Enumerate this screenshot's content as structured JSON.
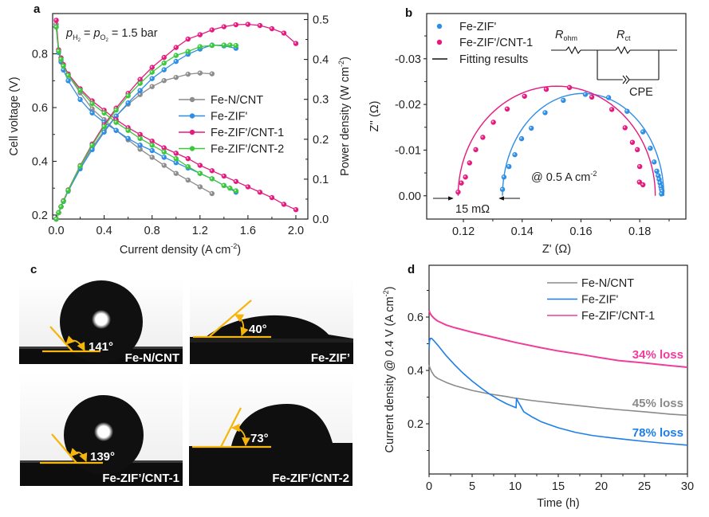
{
  "figure": {
    "panels": [
      "a",
      "b",
      "c",
      "d"
    ]
  },
  "chart_data": [
    {
      "id": "a",
      "type": "line",
      "panel_label": "a",
      "title": "",
      "annotation": {
        "p": "p",
        "h2_sub": "H",
        "h2_subsub": "2",
        "eq1": " = ",
        "o2_sub": "O",
        "o2_subsub": "2",
        "rest": " = 1.5 bar"
      },
      "xlabel": "Current density (A cm",
      "xlabel_sup": "-2",
      "xlabel_end": ")",
      "ylabel": "Cell voltage (V)",
      "y2label": "Power density (W cm",
      "y2label_sup": "-2",
      "y2label_end": ")",
      "xlim": [
        -0.03,
        2.1
      ],
      "ylim": [
        0.185,
        0.95
      ],
      "y2lim": [
        0.0,
        0.515
      ],
      "xticks": [
        "0.0",
        "0.4",
        "0.8",
        "1.2",
        "1.6",
        "2.0"
      ],
      "xtick_values": [
        0.0,
        0.4,
        0.8,
        1.2,
        1.6,
        2.0
      ],
      "yticks": [
        "0.2",
        "0.4",
        "0.6",
        "0.8"
      ],
      "ytick_values": [
        0.2,
        0.4,
        0.6,
        0.8
      ],
      "y2ticks": [
        "0.0",
        "0.1",
        "0.2",
        "0.3",
        "0.4",
        "0.5"
      ],
      "y2tick_values": [
        0.0,
        0.1,
        0.2,
        0.3,
        0.4,
        0.5
      ],
      "legend_position": "center-right",
      "series": [
        {
          "name": "Fe-N/CNT",
          "color": "#8c8c8c",
          "x": [
            0.0,
            0.02,
            0.04,
            0.06,
            0.1,
            0.2,
            0.3,
            0.4,
            0.5,
            0.6,
            0.7,
            0.8,
            0.9,
            1.0,
            1.1,
            1.2,
            1.3
          ],
          "voltage": [
            0.91,
            0.81,
            0.775,
            0.755,
            0.72,
            0.655,
            0.595,
            0.555,
            0.515,
            0.48,
            0.445,
            0.415,
            0.385,
            0.355,
            0.33,
            0.305,
            0.28
          ],
          "power": [
            0.0,
            0.016,
            0.031,
            0.045,
            0.072,
            0.131,
            0.179,
            0.222,
            0.258,
            0.288,
            0.312,
            0.332,
            0.347,
            0.355,
            0.363,
            0.366,
            0.364
          ]
        },
        {
          "name": "Fe-ZIF'",
          "color": "#2e8ee6",
          "x": [
            0.0,
            0.02,
            0.04,
            0.06,
            0.1,
            0.2,
            0.3,
            0.4,
            0.5,
            0.6,
            0.7,
            0.8,
            0.9,
            1.0,
            1.1,
            1.2,
            1.3,
            1.4,
            1.5
          ],
          "voltage": [
            0.9,
            0.805,
            0.77,
            0.74,
            0.7,
            0.63,
            0.58,
            0.545,
            0.515,
            0.485,
            0.46,
            0.44,
            0.415,
            0.395,
            0.375,
            0.355,
            0.335,
            0.31,
            0.285
          ],
          "power": [
            0.0,
            0.016,
            0.031,
            0.044,
            0.07,
            0.126,
            0.174,
            0.218,
            0.258,
            0.291,
            0.322,
            0.352,
            0.374,
            0.395,
            0.413,
            0.426,
            0.436,
            0.434,
            0.428
          ]
        },
        {
          "name": "Fe-ZIF'/CNT-1",
          "color": "#e6197f",
          "x": [
            0.0,
            0.02,
            0.04,
            0.06,
            0.1,
            0.2,
            0.3,
            0.4,
            0.5,
            0.6,
            0.7,
            0.8,
            0.9,
            1.0,
            1.1,
            1.2,
            1.3,
            1.4,
            1.5,
            1.6,
            1.7,
            1.8,
            1.9,
            2.0
          ],
          "voltage": [
            0.925,
            0.815,
            0.785,
            0.76,
            0.725,
            0.67,
            0.625,
            0.59,
            0.555,
            0.525,
            0.5,
            0.475,
            0.45,
            0.43,
            0.41,
            0.385,
            0.365,
            0.345,
            0.325,
            0.305,
            0.285,
            0.265,
            0.24,
            0.22
          ],
          "power": [
            0.0,
            0.016,
            0.031,
            0.046,
            0.073,
            0.134,
            0.188,
            0.236,
            0.278,
            0.315,
            0.35,
            0.38,
            0.405,
            0.43,
            0.451,
            0.462,
            0.474,
            0.482,
            0.487,
            0.488,
            0.485,
            0.477,
            0.466,
            0.44
          ]
        },
        {
          "name": "Fe-ZIF'/CNT-2",
          "color": "#3cc83c",
          "x": [
            0.0,
            0.02,
            0.04,
            0.06,
            0.1,
            0.2,
            0.3,
            0.4,
            0.5,
            0.6,
            0.7,
            0.8,
            0.9,
            1.0,
            1.1,
            1.2,
            1.3,
            1.4,
            1.45,
            1.5
          ],
          "voltage": [
            0.9,
            0.81,
            0.78,
            0.755,
            0.72,
            0.665,
            0.615,
            0.58,
            0.545,
            0.515,
            0.485,
            0.46,
            0.435,
            0.41,
            0.38,
            0.355,
            0.335,
            0.31,
            0.3,
            0.29
          ],
          "power": [
            0.0,
            0.016,
            0.031,
            0.045,
            0.072,
            0.133,
            0.185,
            0.232,
            0.273,
            0.309,
            0.34,
            0.368,
            0.391,
            0.41,
            0.42,
            0.432,
            0.435,
            0.436,
            0.436,
            0.435
          ]
        }
      ]
    },
    {
      "id": "b",
      "type": "scatter",
      "panel_label": "b",
      "xlabel": "Z' (Ω)",
      "ylabel": "Z'' (Ω)",
      "xlim": [
        0.1075,
        0.1957
      ],
      "ylim": [
        0.0051,
        -0.0399
      ],
      "xticks": [
        "0.12",
        "0.14",
        "0.16",
        "0.18"
      ],
      "xtick_values": [
        0.12,
        0.14,
        0.16,
        0.18
      ],
      "yticks": [
        "0.00",
        "-0.01",
        "-0.02",
        "-0.03"
      ],
      "ytick_values": [
        0.0,
        -0.01,
        -0.02,
        -0.03
      ],
      "legend_position": "top-left",
      "legend": [
        {
          "name": "Fe-ZIF'",
          "marker": "dot",
          "color": "#2e8ee6"
        },
        {
          "name": "Fe-ZIF'/CNT-1",
          "marker": "dot",
          "color": "#e6197f"
        },
        {
          "name": "Fitting results",
          "marker": "line",
          "color": "#111111"
        }
      ],
      "annotations": {
        "condition_prefix": "@ 0.5 A cm",
        "condition_sup": "-2",
        "offset": "15 mΩ",
        "circuit": {
          "r_ohm": "R",
          "r_ohm_sub": "ohm",
          "r_ct": "R",
          "r_ct_sub": "ct",
          "cpe": "CPE"
        }
      },
      "series": [
        {
          "name": "Fe-ZIF'",
          "color": "#2e8ee6",
          "x": [
            0.1333,
            0.1338,
            0.1355,
            0.1375,
            0.1398,
            0.1431,
            0.1478,
            0.154,
            0.1615,
            0.1694,
            0.1757,
            0.1811,
            0.1836,
            0.1849,
            0.1858,
            0.1863,
            0.1866,
            0.1869,
            0.1872,
            0.1874,
            0.1876,
            0.1874
          ],
          "y": [
            -0.0014,
            -0.0041,
            -0.0064,
            -0.009,
            -0.0125,
            -0.0148,
            -0.0182,
            -0.0209,
            -0.0222,
            -0.0215,
            -0.0185,
            -0.014,
            -0.0104,
            -0.0074,
            -0.0054,
            -0.0044,
            -0.0036,
            -0.0028,
            -0.002,
            -0.0014,
            -0.001,
            -0.0004
          ],
          "fit": {
            "center": 0.1605,
            "radius": 0.0272,
            "ymax": -0.0224
          }
        },
        {
          "name": "Fe-ZIF'/CNT-1",
          "color": "#e6197f",
          "x": [
            0.1182,
            0.1193,
            0.1207,
            0.1221,
            0.1242,
            0.1266,
            0.1302,
            0.1349,
            0.1408,
            0.1482,
            0.1561,
            0.1637,
            0.1705,
            0.175,
            0.1775,
            0.1792,
            0.18,
            0.1799,
            0.1811
          ],
          "y": [
            -0.0008,
            -0.0028,
            -0.0041,
            -0.0072,
            -0.0101,
            -0.0128,
            -0.0161,
            -0.019,
            -0.0218,
            -0.0233,
            -0.0237,
            -0.0216,
            -0.0189,
            -0.0149,
            -0.0117,
            -0.0101,
            -0.0064,
            -0.003,
            -0.0024
          ],
          "fit": {
            "center": 0.151,
            "radius": 0.032,
            "ymax": -0.024
          }
        }
      ]
    },
    {
      "id": "d",
      "type": "line",
      "panel_label": "d",
      "xlabel": "Time (h)",
      "ylabel": "Current density @ 0.4 V (A cm",
      "ylabel_sup": "-2",
      "ylabel_end": ")",
      "xlim": [
        0,
        30
      ],
      "ylim": [
        0.012,
        0.794
      ],
      "xticks": [
        "0",
        "5",
        "10",
        "15",
        "20",
        "25",
        "30"
      ],
      "xtick_values": [
        0,
        5,
        10,
        15,
        20,
        25,
        30
      ],
      "yticks": [
        "0.2",
        "0.4",
        "0.6"
      ],
      "ytick_values": [
        0.2,
        0.4,
        0.6
      ],
      "legend_position": "top-right",
      "series": [
        {
          "name": "Fe-N/CNT",
          "color": "#8a8a8a",
          "x": [
            0,
            0.1,
            0.3,
            0.6,
            1,
            2,
            3,
            5,
            7,
            9,
            10,
            12,
            15,
            18,
            20,
            22,
            25,
            28,
            30
          ],
          "y": [
            0.42,
            0.41,
            0.395,
            0.38,
            0.37,
            0.355,
            0.343,
            0.325,
            0.312,
            0.302,
            0.296,
            0.287,
            0.276,
            0.266,
            0.259,
            0.253,
            0.245,
            0.236,
            0.232
          ],
          "loss_label": "45% loss"
        },
        {
          "name": "Fe-ZIF'",
          "color": "#1e7ee8",
          "x": [
            0,
            0.05,
            0.15,
            0.3,
            0.6,
            1,
            2,
            3,
            4,
            5,
            6,
            7,
            8,
            9,
            10.1,
            10.15,
            10.3,
            11,
            12,
            13,
            15,
            17,
            19,
            21,
            23,
            25,
            27,
            30
          ],
          "y": [
            0.48,
            0.51,
            0.52,
            0.52,
            0.51,
            0.495,
            0.455,
            0.42,
            0.388,
            0.36,
            0.335,
            0.312,
            0.292,
            0.275,
            0.26,
            0.295,
            0.285,
            0.245,
            0.225,
            0.208,
            0.185,
            0.168,
            0.156,
            0.148,
            0.141,
            0.134,
            0.128,
            0.12
          ],
          "loss_label": "78% loss"
        },
        {
          "name": "Fe-ZIF'/CNT-1",
          "color": "#f03c9c",
          "x": [
            0,
            0.1,
            0.3,
            0.6,
            1,
            2,
            3,
            5,
            7,
            10,
            13,
            15,
            18,
            20,
            22,
            25,
            28,
            30
          ],
          "y": [
            0.625,
            0.615,
            0.605,
            0.595,
            0.585,
            0.57,
            0.56,
            0.543,
            0.528,
            0.505,
            0.485,
            0.473,
            0.458,
            0.447,
            0.437,
            0.428,
            0.418,
            0.412
          ],
          "loss_label": "34% loss"
        }
      ]
    }
  ],
  "contact_angles": {
    "panel_label": "c",
    "accent_color": "#f5b50a",
    "images": [
      {
        "sample": "Fe-N/CNT",
        "angle": "141°",
        "angle_value": 141
      },
      {
        "sample": "Fe-ZIF’",
        "angle": "40°",
        "angle_value": 40
      },
      {
        "sample": "Fe-ZIF’/CNT-1",
        "angle": "139°",
        "angle_value": 139
      },
      {
        "sample": "Fe-ZIF’/CNT-2",
        "angle": "73°",
        "angle_value": 73
      }
    ]
  }
}
